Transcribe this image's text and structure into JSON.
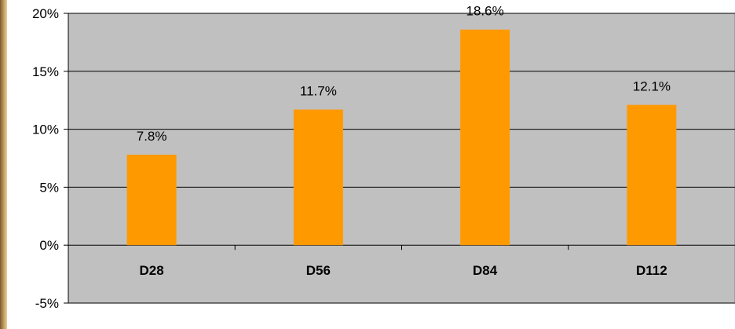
{
  "chart_data": {
    "type": "bar",
    "categories": [
      "D28",
      "D56",
      "D84",
      "D112"
    ],
    "values": [
      7.8,
      11.7,
      18.6,
      12.1
    ],
    "data_labels": [
      "7.8%",
      "11.7%",
      "18.6%",
      "12.1%"
    ],
    "ylim": [
      -5,
      20
    ],
    "yticks": [
      20,
      15,
      10,
      5,
      0,
      -5
    ],
    "ytick_labels": [
      "20%",
      "15%",
      "10%",
      "5%",
      "0%",
      "-5%"
    ],
    "title": "",
    "xlabel": "",
    "ylabel": "",
    "grid": true,
    "legend": "none",
    "colors": {
      "bar": "#ff9900",
      "plot_background": "#c0c0c0",
      "gridline": "#000000"
    }
  }
}
